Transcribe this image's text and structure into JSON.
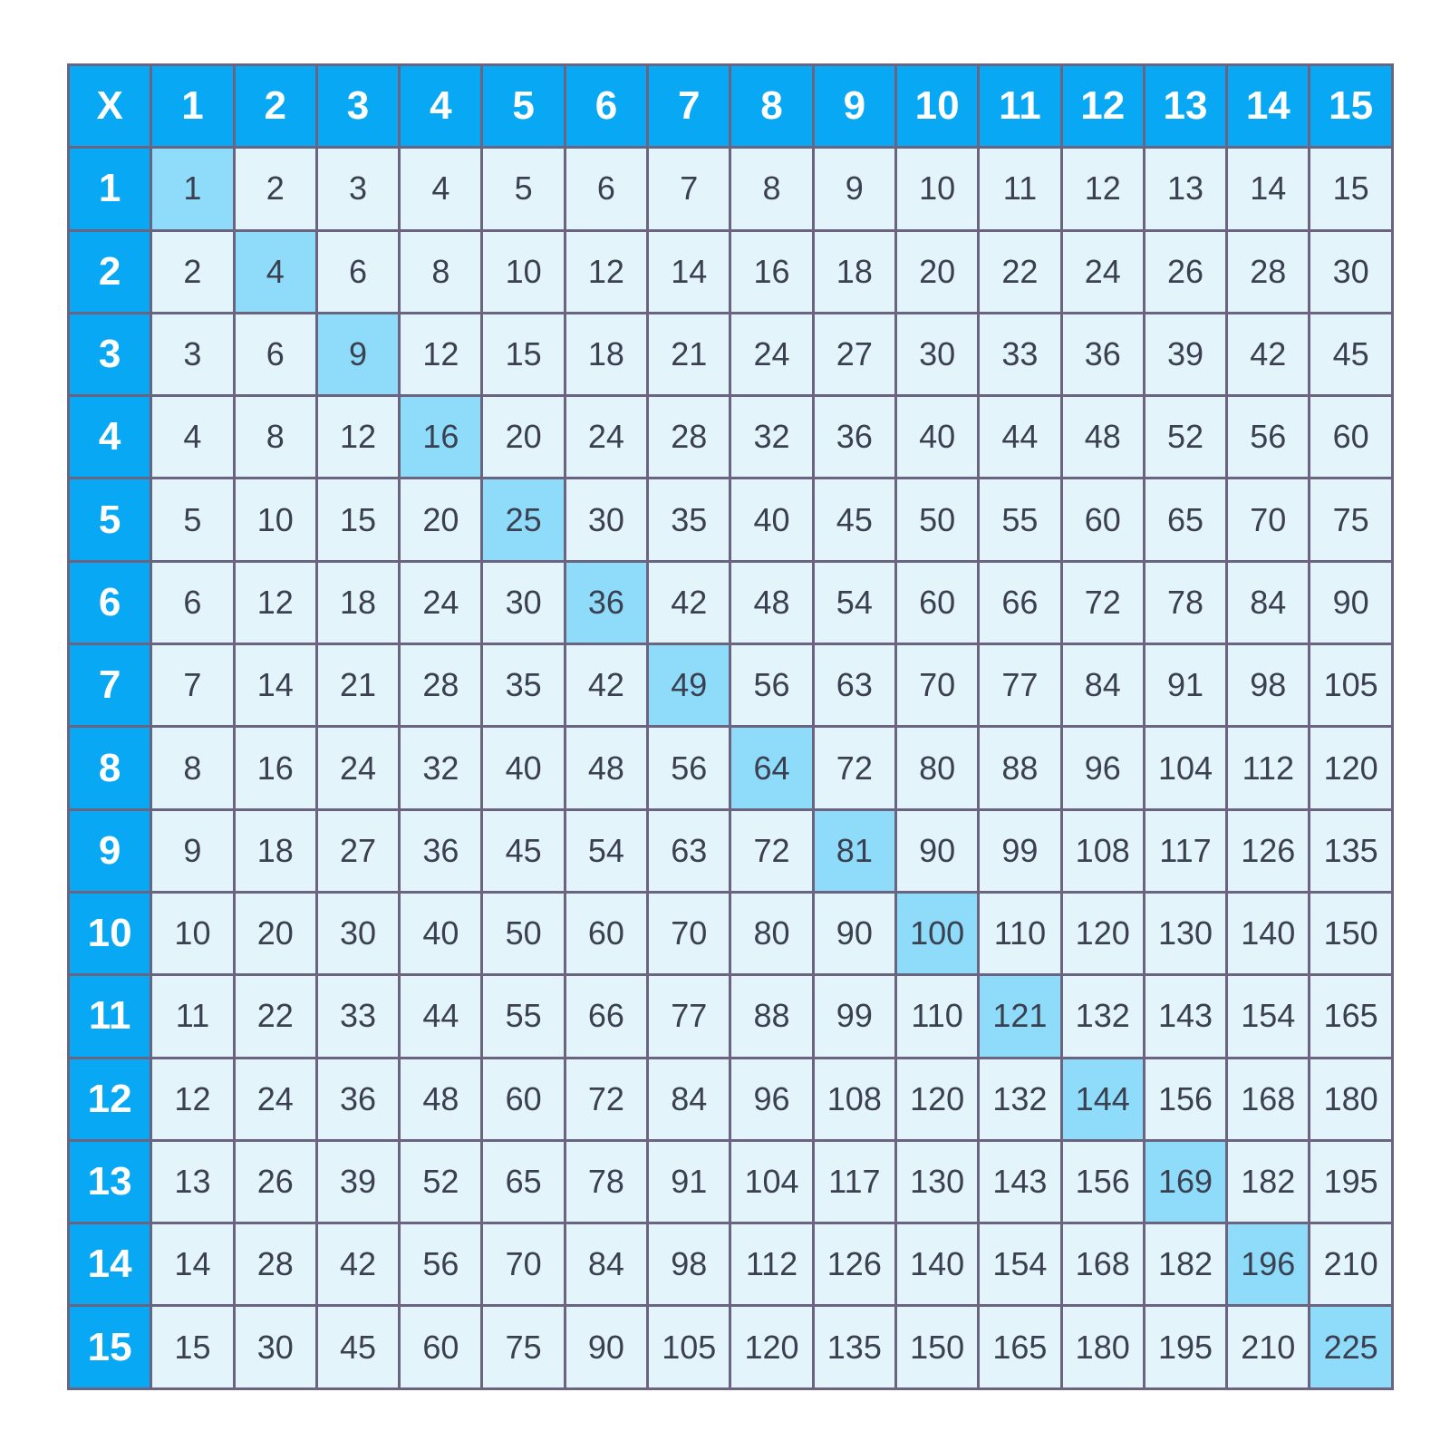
{
  "table": {
    "corner": "X",
    "columns": [
      1,
      2,
      3,
      4,
      5,
      6,
      7,
      8,
      9,
      10,
      11,
      12,
      13,
      14,
      15
    ],
    "rows": [
      {
        "header": 1,
        "cells": [
          1,
          2,
          3,
          4,
          5,
          6,
          7,
          8,
          9,
          10,
          11,
          12,
          13,
          14,
          15
        ]
      },
      {
        "header": 2,
        "cells": [
          2,
          4,
          6,
          8,
          10,
          12,
          14,
          16,
          18,
          20,
          22,
          24,
          26,
          28,
          30
        ]
      },
      {
        "header": 3,
        "cells": [
          3,
          6,
          9,
          12,
          15,
          18,
          21,
          24,
          27,
          30,
          33,
          36,
          39,
          42,
          45
        ]
      },
      {
        "header": 4,
        "cells": [
          4,
          8,
          12,
          16,
          20,
          24,
          28,
          32,
          36,
          40,
          44,
          48,
          52,
          56,
          60
        ]
      },
      {
        "header": 5,
        "cells": [
          5,
          10,
          15,
          20,
          25,
          30,
          35,
          40,
          45,
          50,
          55,
          60,
          65,
          70,
          75
        ]
      },
      {
        "header": 6,
        "cells": [
          6,
          12,
          18,
          24,
          30,
          36,
          42,
          48,
          54,
          60,
          66,
          72,
          78,
          84,
          90
        ]
      },
      {
        "header": 7,
        "cells": [
          7,
          14,
          21,
          28,
          35,
          42,
          49,
          56,
          63,
          70,
          77,
          84,
          91,
          98,
          105
        ]
      },
      {
        "header": 8,
        "cells": [
          8,
          16,
          24,
          32,
          40,
          48,
          56,
          64,
          72,
          80,
          88,
          96,
          104,
          112,
          120
        ]
      },
      {
        "header": 9,
        "cells": [
          9,
          18,
          27,
          36,
          45,
          54,
          63,
          72,
          81,
          90,
          99,
          108,
          117,
          126,
          135
        ]
      },
      {
        "header": 10,
        "cells": [
          10,
          20,
          30,
          40,
          50,
          60,
          70,
          80,
          90,
          100,
          110,
          120,
          130,
          140,
          150
        ]
      },
      {
        "header": 11,
        "cells": [
          11,
          22,
          33,
          44,
          55,
          66,
          77,
          88,
          99,
          110,
          121,
          132,
          143,
          154,
          165
        ]
      },
      {
        "header": 12,
        "cells": [
          12,
          24,
          36,
          48,
          60,
          72,
          84,
          96,
          108,
          120,
          132,
          144,
          156,
          168,
          180
        ]
      },
      {
        "header": 13,
        "cells": [
          13,
          26,
          39,
          52,
          65,
          78,
          91,
          104,
          117,
          130,
          143,
          156,
          169,
          182,
          195
        ]
      },
      {
        "header": 14,
        "cells": [
          14,
          28,
          42,
          56,
          70,
          84,
          98,
          112,
          126,
          140,
          154,
          168,
          182,
          196,
          210
        ]
      },
      {
        "header": 15,
        "cells": [
          15,
          30,
          45,
          60,
          75,
          90,
          105,
          120,
          135,
          150,
          165,
          180,
          195,
          210,
          225
        ]
      }
    ]
  }
}
